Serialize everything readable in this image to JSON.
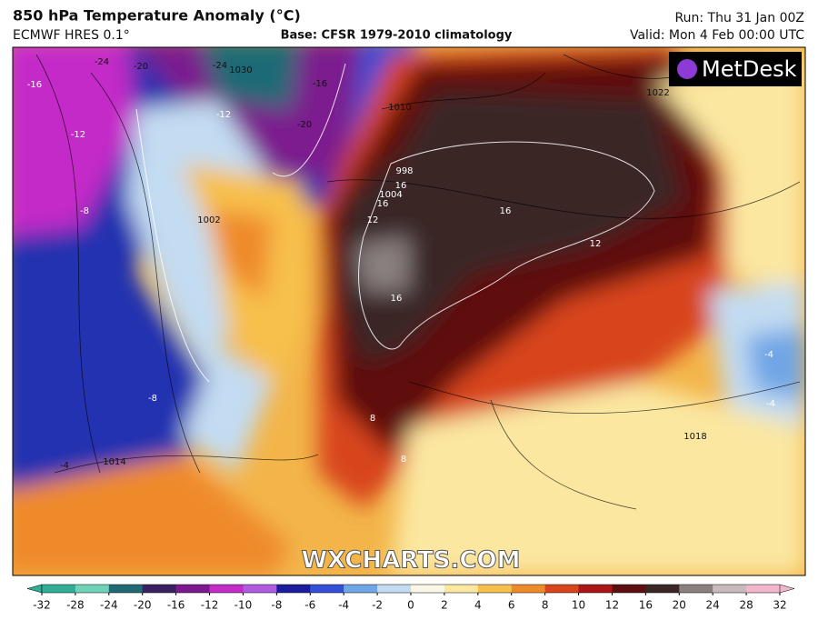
{
  "header": {
    "title": "850 hPa Temperature Anomaly (°C)",
    "model": "ECMWF HRES 0.1°",
    "base": "Base: CFSR 1979-2010 climatology",
    "run": "Run: Thu 31 Jan 00Z",
    "valid": "Valid: Mon 4 Feb 00:00 UTC"
  },
  "logo": "MetDesk",
  "watermark": "WXCHARTS.COM",
  "map_labels": [
    "-16",
    "-24",
    "-20",
    "-24",
    "1030",
    "-16",
    "-12",
    "-20",
    "-12",
    "-8",
    "998",
    "16",
    "1004",
    "16",
    "12",
    "16",
    "12",
    "16",
    "1002",
    "1014",
    "-8",
    "-4",
    "-4",
    "-4",
    "8",
    "8",
    "1018",
    "1022",
    "1010"
  ],
  "colorbar": {
    "ticks": [
      -32,
      -28,
      -24,
      -20,
      -16,
      -12,
      -10,
      -8,
      -6,
      -4,
      -2,
      0,
      2,
      4,
      6,
      8,
      10,
      12,
      16,
      20,
      24,
      28,
      32
    ],
    "colors": [
      "#2fae95",
      "#6fd3b8",
      "#1f6a74",
      "#3a1f63",
      "#7b1a8e",
      "#c42cc8",
      "#b05be0",
      "#1c1c9e",
      "#3350d6",
      "#6fa6e6",
      "#c3dcf2",
      "#fbf7e6",
      "#fbe7a0",
      "#f7c04c",
      "#ef8a2a",
      "#d8441c",
      "#a8161a",
      "#5e0e10",
      "#3b2525",
      "#8a8080",
      "#c9b9bc",
      "#f2b6cc"
    ]
  }
}
